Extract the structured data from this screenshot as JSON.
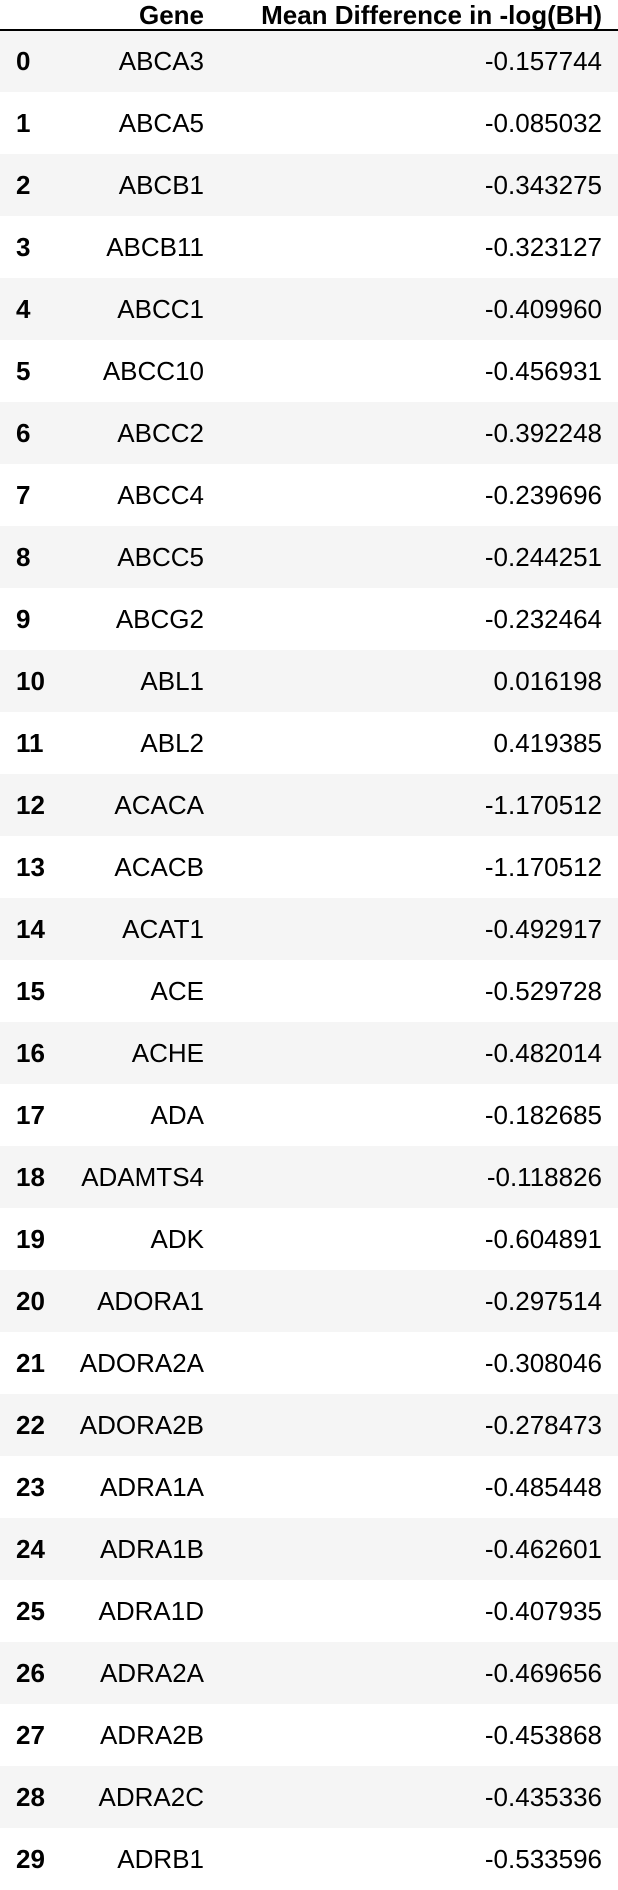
{
  "table": {
    "columns": {
      "index": "",
      "gene": "Gene",
      "mean": "Mean Difference in -log(BH)"
    },
    "rows": [
      {
        "index": "0",
        "gene": "ABCA3",
        "mean": "-0.157744"
      },
      {
        "index": "1",
        "gene": "ABCA5",
        "mean": "-0.085032"
      },
      {
        "index": "2",
        "gene": "ABCB1",
        "mean": "-0.343275"
      },
      {
        "index": "3",
        "gene": "ABCB11",
        "mean": "-0.323127"
      },
      {
        "index": "4",
        "gene": "ABCC1",
        "mean": "-0.409960"
      },
      {
        "index": "5",
        "gene": "ABCC10",
        "mean": "-0.456931"
      },
      {
        "index": "6",
        "gene": "ABCC2",
        "mean": "-0.392248"
      },
      {
        "index": "7",
        "gene": "ABCC4",
        "mean": "-0.239696"
      },
      {
        "index": "8",
        "gene": "ABCC5",
        "mean": "-0.244251"
      },
      {
        "index": "9",
        "gene": "ABCG2",
        "mean": "-0.232464"
      },
      {
        "index": "10",
        "gene": "ABL1",
        "mean": "0.016198"
      },
      {
        "index": "11",
        "gene": "ABL2",
        "mean": "0.419385"
      },
      {
        "index": "12",
        "gene": "ACACA",
        "mean": "-1.170512"
      },
      {
        "index": "13",
        "gene": "ACACB",
        "mean": "-1.170512"
      },
      {
        "index": "14",
        "gene": "ACAT1",
        "mean": "-0.492917"
      },
      {
        "index": "15",
        "gene": "ACE",
        "mean": "-0.529728"
      },
      {
        "index": "16",
        "gene": "ACHE",
        "mean": "-0.482014"
      },
      {
        "index": "17",
        "gene": "ADA",
        "mean": "-0.182685"
      },
      {
        "index": "18",
        "gene": "ADAMTS4",
        "mean": "-0.118826"
      },
      {
        "index": "19",
        "gene": "ADK",
        "mean": "-0.604891"
      },
      {
        "index": "20",
        "gene": "ADORA1",
        "mean": "-0.297514"
      },
      {
        "index": "21",
        "gene": "ADORA2A",
        "mean": "-0.308046"
      },
      {
        "index": "22",
        "gene": "ADORA2B",
        "mean": "-0.278473"
      },
      {
        "index": "23",
        "gene": "ADRA1A",
        "mean": "-0.485448"
      },
      {
        "index": "24",
        "gene": "ADRA1B",
        "mean": "-0.462601"
      },
      {
        "index": "25",
        "gene": "ADRA1D",
        "mean": "-0.407935"
      },
      {
        "index": "26",
        "gene": "ADRA2A",
        "mean": "-0.469656"
      },
      {
        "index": "27",
        "gene": "ADRA2B",
        "mean": "-0.453868"
      },
      {
        "index": "28",
        "gene": "ADRA2C",
        "mean": "-0.435336"
      },
      {
        "index": "29",
        "gene": "ADRB1",
        "mean": "-0.533596"
      }
    ]
  }
}
